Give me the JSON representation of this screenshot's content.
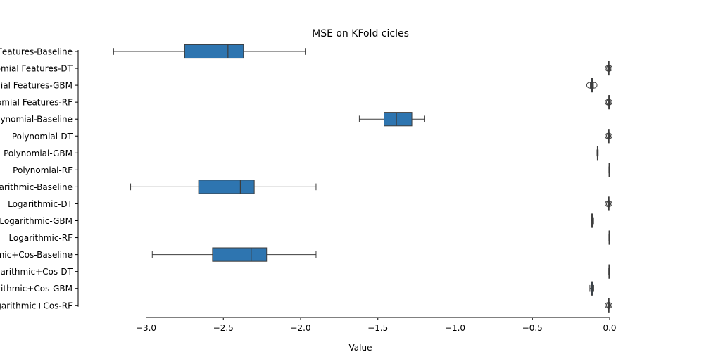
{
  "chart_data": {
    "type": "box",
    "title": "MSE on KFold cicles",
    "xlabel": "Value",
    "ylabel": "",
    "xlim": [
      -3.2,
      0.0
    ],
    "x_ticks": [
      -3.0,
      -2.5,
      -2.0,
      -1.5,
      -1.0,
      -0.5,
      0.0
    ],
    "x_tick_labels": [
      "−3.0",
      "−2.5",
      "−2.0",
      "−1.5",
      "−1.0",
      "−0.5",
      "0.0"
    ],
    "grid": false,
    "box_color": "#2e75b0",
    "categories": [
      "Polynomial Features-Baseline",
      "Polynomial Features-DT",
      "Polynomial Features-GBM",
      "Polynomial Features-RF",
      "Polynomial-Baseline",
      "Polynomial-DT",
      "Polynomial-GBM",
      "Polynomial-RF",
      "Logarithmic-Baseline",
      "Logarithmic-DT",
      "Logarithmic-GBM",
      "Logarithmic-RF",
      "Logarithmic+Cos-Baseline",
      "Logarithmic+Cos-DT",
      "Logarithmic+Cos-GBM",
      "Logarithmic+Cos-RF"
    ],
    "boxes": [
      {
        "whislo": -3.21,
        "q1": -2.75,
        "med": -2.47,
        "q3": -2.37,
        "whishi": -1.97,
        "fliers": []
      },
      {
        "whislo": -0.012,
        "q1": -0.008,
        "med": -0.006,
        "q3": -0.004,
        "whishi": -0.002,
        "fliers": [
          -0.01,
          -0.002
        ]
      },
      {
        "whislo": -0.125,
        "q1": -0.118,
        "med": -0.113,
        "q3": -0.11,
        "whishi": -0.105,
        "fliers": [
          -0.13,
          -0.1
        ]
      },
      {
        "whislo": -0.01,
        "q1": -0.006,
        "med": -0.005,
        "q3": -0.004,
        "whishi": -0.002,
        "fliers": [
          -0.01,
          -0.003
        ]
      },
      {
        "whislo": -1.62,
        "q1": -1.46,
        "med": -1.38,
        "q3": -1.28,
        "whishi": -1.2,
        "fliers": []
      },
      {
        "whislo": -0.012,
        "q1": -0.008,
        "med": -0.006,
        "q3": -0.004,
        "whishi": -0.002,
        "fliers": [
          -0.011,
          -0.003
        ]
      },
      {
        "whislo": -0.082,
        "q1": -0.08,
        "med": -0.078,
        "q3": -0.076,
        "whishi": -0.074,
        "fliers": []
      },
      {
        "whislo": -0.005,
        "q1": -0.004,
        "med": -0.003,
        "q3": -0.002,
        "whishi": -0.001,
        "fliers": []
      },
      {
        "whislo": -3.1,
        "q1": -2.66,
        "med": -2.39,
        "q3": -2.3,
        "whishi": -1.9,
        "fliers": []
      },
      {
        "whislo": -0.012,
        "q1": -0.008,
        "med": -0.006,
        "q3": -0.004,
        "whishi": -0.002,
        "fliers": [
          -0.011,
          -0.003
        ]
      },
      {
        "whislo": -0.12,
        "q1": -0.116,
        "med": -0.112,
        "q3": -0.11,
        "whishi": -0.104,
        "fliers": []
      },
      {
        "whislo": -0.005,
        "q1": -0.004,
        "med": -0.003,
        "q3": -0.002,
        "whishi": -0.001,
        "fliers": []
      },
      {
        "whislo": -2.96,
        "q1": -2.57,
        "med": -2.32,
        "q3": -2.22,
        "whishi": -1.9,
        "fliers": []
      },
      {
        "whislo": -0.006,
        "q1": -0.005,
        "med": -0.004,
        "q3": -0.003,
        "whishi": -0.002,
        "fliers": []
      },
      {
        "whislo": -0.128,
        "q1": -0.12,
        "med": -0.115,
        "q3": -0.11,
        "whishi": -0.103,
        "fliers": []
      },
      {
        "whislo": -0.012,
        "q1": -0.008,
        "med": -0.006,
        "q3": -0.004,
        "whishi": -0.002,
        "fliers": [
          -0.011,
          -0.003
        ]
      }
    ]
  }
}
